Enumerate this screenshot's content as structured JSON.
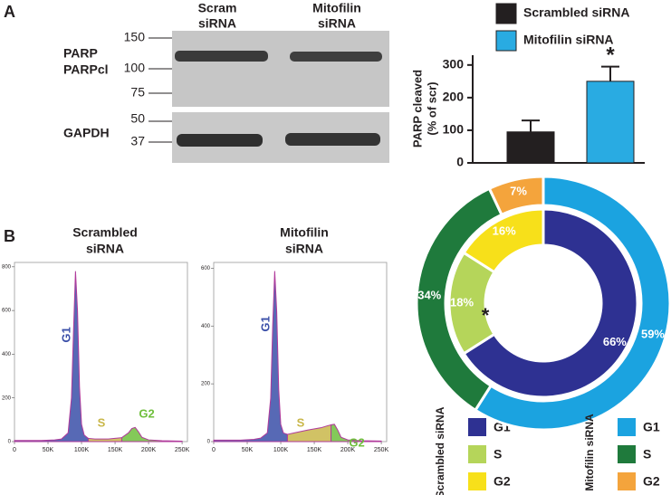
{
  "panel_labels": [
    "A",
    "B"
  ],
  "blot": {
    "lanes": [
      [
        "Scram",
        "siRNA"
      ],
      [
        "Mitofilin",
        "siRNA"
      ]
    ],
    "proteins": [
      "PARP",
      "PARPcl",
      "GAPDH"
    ],
    "markers": [
      150,
      100,
      75,
      50,
      37
    ]
  },
  "chart_data": [
    {
      "type": "bar",
      "series": [
        {
          "name": "Scrambled siRNA",
          "color": "#231f20",
          "values": [
            95
          ],
          "errors": [
            35
          ]
        },
        {
          "name": "Mitofilin siRNA",
          "color": "#29abe2",
          "values": [
            250
          ],
          "errors": [
            45
          ]
        }
      ],
      "ylabel": [
        "PARP cleaved",
        "(% of scr)"
      ],
      "ylim": [
        0,
        330
      ],
      "yticks": [
        0,
        100,
        200,
        300
      ],
      "annotation": "*"
    },
    {
      "type": "donut",
      "series": [
        {
          "name": "Scrambled siRNA",
          "labels": [
            "G1",
            "S",
            "G2"
          ],
          "colors": [
            "#2e3192",
            "#b5d55a",
            "#f7e01a"
          ],
          "values": [
            66,
            18,
            16
          ],
          "value_labels": [
            "66%",
            "18%",
            "16%"
          ]
        },
        {
          "name": "Mitofilin siRNA",
          "labels": [
            "G1",
            "S",
            "G2"
          ],
          "colors": [
            "#1ba3e0",
            "#1f7a3c",
            "#f4a43c"
          ],
          "values": [
            59,
            34,
            7
          ],
          "value_labels": [
            "59%",
            "34%",
            "7%"
          ]
        }
      ],
      "annotation": "*"
    },
    {
      "type": "area",
      "title": [
        "Scrambled",
        "siRNA"
      ],
      "x": [
        0,
        20000,
        40000,
        60000,
        70000,
        80000,
        85000,
        88000,
        91000,
        94000,
        97000,
        100000,
        104000,
        110000,
        120000,
        140000,
        160000,
        170000,
        175000,
        180000,
        185000,
        190000,
        200000,
        220000,
        250000
      ],
      "series": [
        {
          "name": "G1",
          "color": "#3a4fa8",
          "values": [
            5,
            5,
            5,
            8,
            12,
            40,
            200,
            500,
            780,
            600,
            250,
            80,
            30,
            15,
            null,
            null,
            null,
            null,
            null,
            null,
            null,
            null,
            null,
            null,
            null
          ]
        },
        {
          "name": "S",
          "color": "#c9b74a",
          "values": [
            null,
            null,
            null,
            null,
            null,
            null,
            null,
            null,
            null,
            null,
            null,
            null,
            null,
            15,
            12,
            12,
            18,
            null,
            null,
            null,
            null,
            null,
            null,
            null,
            null
          ]
        },
        {
          "name": "G2",
          "color": "#6fbf3c",
          "values": [
            null,
            null,
            null,
            null,
            null,
            null,
            null,
            null,
            null,
            null,
            null,
            null,
            null,
            null,
            null,
            null,
            18,
            40,
            60,
            65,
            45,
            20,
            8,
            4,
            2
          ]
        }
      ],
      "xlim": [
        0,
        258000
      ],
      "xticks": [
        0,
        {
          "value": 50000,
          "label": "50K"
        },
        {
          "value": 100000,
          "label": "100K"
        },
        {
          "value": 150000,
          "label": "150K"
        },
        {
          "value": 200000,
          "label": "200K"
        },
        {
          "value": 250000,
          "label": "250K"
        }
      ],
      "ylim": [
        0,
        820
      ],
      "yticks": [
        0,
        200,
        400,
        600,
        800
      ]
    },
    {
      "type": "area",
      "title": [
        "Mitofilin",
        "siRNA"
      ],
      "x": [
        0,
        20000,
        40000,
        60000,
        70000,
        80000,
        85000,
        88000,
        91000,
        94000,
        97000,
        100000,
        104000,
        110000,
        120000,
        140000,
        160000,
        170000,
        175000,
        180000,
        185000,
        190000,
        200000,
        220000,
        250000
      ],
      "series": [
        {
          "name": "G1",
          "color": "#3a4fa8",
          "values": [
            5,
            5,
            5,
            8,
            12,
            30,
            150,
            400,
            590,
            450,
            180,
            60,
            30,
            25,
            null,
            null,
            null,
            null,
            null,
            null,
            null,
            null,
            null,
            null,
            null
          ]
        },
        {
          "name": "S",
          "color": "#c9b74a",
          "values": [
            null,
            null,
            null,
            null,
            null,
            null,
            null,
            null,
            null,
            null,
            null,
            null,
            null,
            25,
            30,
            40,
            48,
            55,
            58,
            null,
            null,
            null,
            null,
            null,
            null
          ]
        },
        {
          "name": "G2",
          "color": "#6fbf3c",
          "values": [
            null,
            null,
            null,
            null,
            null,
            null,
            null,
            null,
            null,
            null,
            null,
            null,
            null,
            null,
            null,
            null,
            null,
            null,
            58,
            60,
            40,
            15,
            6,
            3,
            2
          ]
        }
      ],
      "xlim": [
        0,
        258000
      ],
      "xticks": [
        0,
        {
          "value": 50000,
          "label": "50K"
        },
        {
          "value": 100000,
          "label": "100K"
        },
        {
          "value": 150000,
          "label": "150K"
        },
        {
          "value": 200000,
          "label": "200K"
        },
        {
          "value": 250000,
          "label": "250K"
        }
      ],
      "ylim": [
        0,
        620
      ],
      "yticks": [
        0,
        200,
        400,
        600
      ]
    }
  ]
}
